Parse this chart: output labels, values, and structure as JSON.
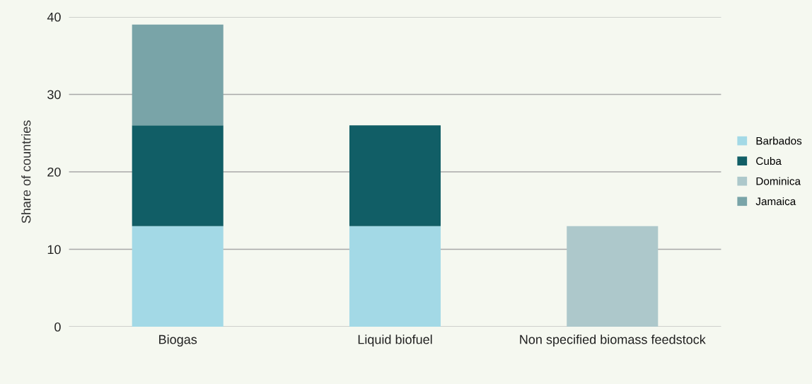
{
  "chart_data": {
    "type": "bar",
    "stacked": true,
    "ylabel": "Share of countries",
    "categories": [
      "Biogas",
      "Liquid biofuel",
      "Non specified biomass feedstock"
    ],
    "series": [
      {
        "name": "Barbados",
        "color": "#a3d9e6",
        "values": [
          13,
          13,
          null
        ]
      },
      {
        "name": "Cuba",
        "color": "#115e66",
        "values": [
          13,
          13,
          null
        ]
      },
      {
        "name": "Dominica",
        "color": "#adc8cb",
        "values": [
          null,
          null,
          13
        ]
      },
      {
        "name": "Jamaica",
        "color": "#79a4a8",
        "values": [
          13,
          null,
          null
        ]
      }
    ],
    "ylim": [
      0,
      40
    ],
    "yticks": [
      0,
      10,
      20,
      30,
      40
    ],
    "grid": "y",
    "legend": "right"
  }
}
